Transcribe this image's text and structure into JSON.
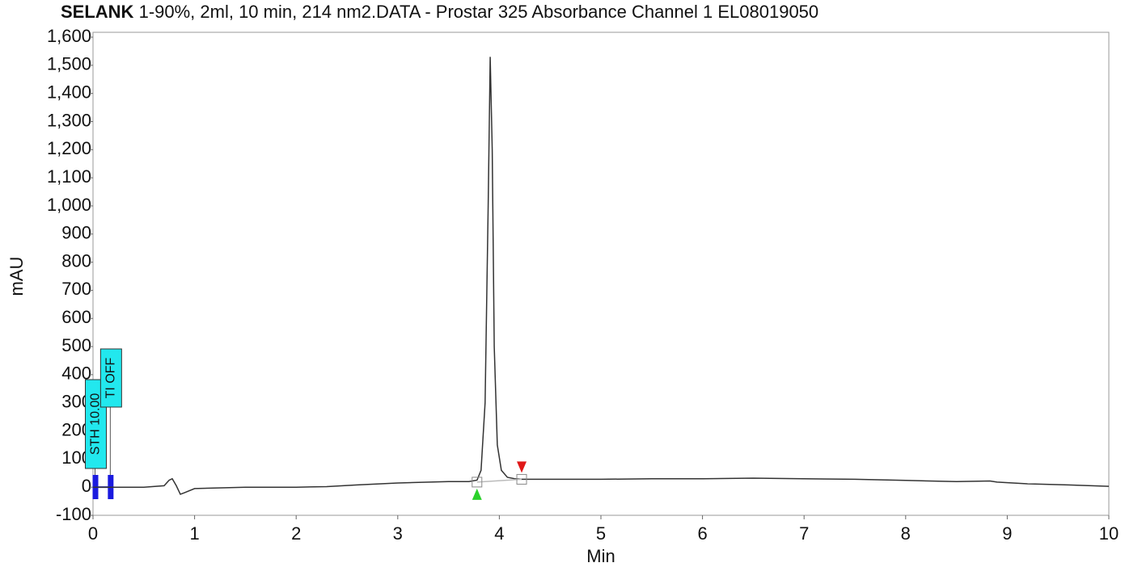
{
  "chart_data": {
    "type": "line",
    "title_prefix": "SELANK",
    "title": "1-90%, 2ml, 10 min, 214 nm2.DATA - Prostar 325 Absorbance Channel 1 EL08019050",
    "x_label": "Min",
    "y_label": "mAU",
    "x": [
      0,
      0.1,
      0.2,
      0.5,
      0.7,
      0.75,
      0.78,
      0.82,
      0.86,
      0.9,
      1.0,
      1.5,
      2,
      2.3,
      2.6,
      3,
      3.5,
      3.7,
      3.78,
      3.82,
      3.86,
      3.89,
      3.91,
      3.93,
      3.95,
      3.98,
      4.02,
      4.08,
      4.15,
      4.22,
      4.5,
      5,
      5.5,
      6,
      6.5,
      7,
      7.5,
      8,
      8.5,
      8.83,
      8.9,
      9.2,
      9.6,
      10
    ],
    "values": [
      0,
      0,
      0,
      0,
      5,
      25,
      30,
      5,
      -25,
      -20,
      -5,
      0,
      0,
      2,
      8,
      15,
      20,
      20,
      25,
      60,
      300,
      1000,
      1530,
      1200,
      500,
      150,
      60,
      35,
      30,
      28,
      28,
      28,
      30,
      30,
      32,
      30,
      28,
      24,
      20,
      22,
      18,
      12,
      8,
      3
    ],
    "color": "#333333",
    "baseline": {
      "x": [
        3.78,
        4.22
      ],
      "values": [
        18,
        28
      ],
      "color": "#bbbbbb"
    },
    "peak_start": 3.78,
    "peak_end": 4.22,
    "annotations": [
      {
        "x": 0.02,
        "label": "STH 10.00"
      },
      {
        "x": 0.17,
        "label": "TI OFF"
      }
    ],
    "xlim": [
      0,
      10
    ],
    "ylim": [
      -100,
      1600
    ],
    "xticks": [
      0,
      1,
      2,
      3,
      4,
      5,
      6,
      7,
      8,
      9,
      10
    ],
    "yticks": [
      -100,
      0,
      100,
      200,
      300,
      400,
      500,
      600,
      700,
      800,
      900,
      {
        "value": 1000,
        "label": "1,000"
      },
      {
        "value": 1100,
        "label": "1,100"
      },
      {
        "value": 1200,
        "label": "1,200"
      },
      {
        "value": 1300,
        "label": "1,300"
      },
      {
        "value": 1400,
        "label": "1,400"
      },
      {
        "value": 1500,
        "label": "1,500"
      },
      {
        "value": 1600,
        "label": "1,600"
      }
    ],
    "grid": false
  }
}
